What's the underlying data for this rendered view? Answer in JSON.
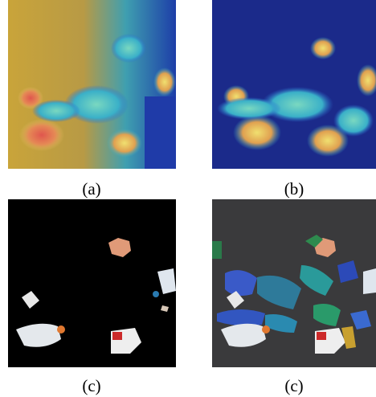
{
  "figure": {
    "panels": [
      {
        "label": "(a)"
      },
      {
        "label": "(b)"
      },
      {
        "label": "(c)"
      },
      {
        "label": "(c)"
      }
    ]
  }
}
